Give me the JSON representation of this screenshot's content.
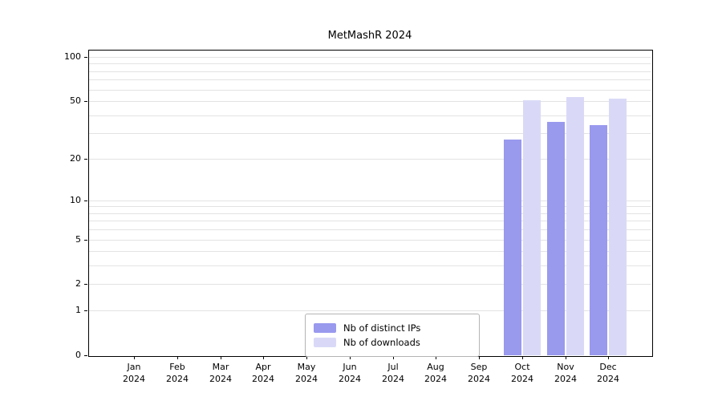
{
  "chart_data": {
    "type": "bar",
    "title": "MetMashR 2024",
    "year_label": "2024",
    "categories": [
      "Jan",
      "Feb",
      "Mar",
      "Apr",
      "May",
      "Jun",
      "Jul",
      "Aug",
      "Sep",
      "Oct",
      "Nov",
      "Dec"
    ],
    "series": [
      {
        "name": "Nb of distinct IPs",
        "color": "#9999ee",
        "values": [
          0,
          0,
          0,
          0,
          0,
          0,
          0,
          0,
          0,
          27,
          36,
          34
        ]
      },
      {
        "name": "Nb of downloads",
        "color": "#d9d9f7",
        "values": [
          0,
          0,
          0,
          0,
          0,
          0,
          0,
          0,
          0,
          51,
          53,
          52
        ]
      }
    ],
    "y_ticks": [
      0,
      1,
      2,
      5,
      10,
      20,
      50,
      100
    ],
    "y_scale": "log1p",
    "ylim": [
      0,
      113
    ],
    "grid": true,
    "legend_position": "lower center"
  }
}
